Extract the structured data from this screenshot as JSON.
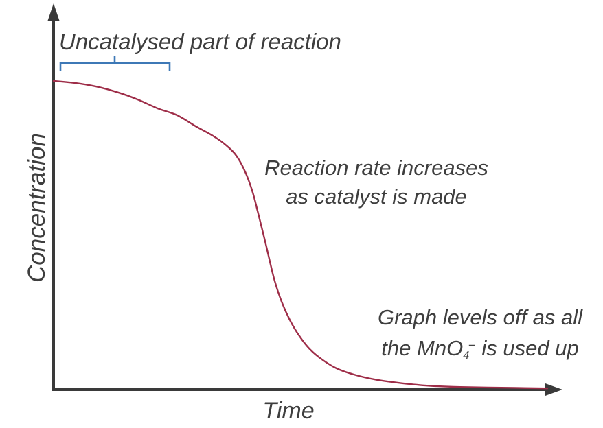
{
  "chart_data": {
    "type": "line",
    "title": "",
    "xlabel": "Time",
    "ylabel": "Concentration",
    "x_ticks": [],
    "y_ticks": [],
    "grid": "off",
    "legend": "none",
    "axis_range_note": "qualitative sketch, no numeric scales; values normalized 0-1",
    "axis_color": "#3a3a3a",
    "curve_color": "#9e2d48",
    "bracket_color": "#3d78b6",
    "text_color": "#3e3e3e",
    "background_color": "#ffffff",
    "series": [
      {
        "name": "reactant-concentration-vs-time",
        "x": [
          0.0,
          0.045,
          0.086,
          0.128,
          0.17,
          0.211,
          0.25,
          0.288,
          0.323,
          0.35,
          0.371,
          0.389,
          0.403,
          0.414,
          0.426,
          0.437,
          0.448,
          0.462,
          0.478,
          0.498,
          0.52,
          0.545,
          0.573,
          0.608,
          0.65,
          0.698,
          0.754,
          0.81,
          0.879,
          1.0
        ],
        "y": [
          1.0,
          0.993,
          0.982,
          0.964,
          0.94,
          0.911,
          0.889,
          0.853,
          0.822,
          0.791,
          0.756,
          0.702,
          0.64,
          0.573,
          0.496,
          0.422,
          0.351,
          0.284,
          0.227,
          0.173,
          0.129,
          0.096,
          0.069,
          0.049,
          0.033,
          0.022,
          0.013,
          0.009,
          0.007,
          0.004
        ]
      }
    ],
    "annotations": {
      "uncatalysed": {
        "text": "Uncatalysed part of reaction",
        "position": "top-left, above blue bracket spanning first ~22% of time axis"
      },
      "rate": {
        "line1": "Reaction rate increases",
        "line2": "as catalyst is made",
        "position": "right of steep middle section of curve"
      },
      "levels": {
        "line1": "Graph levels off as all",
        "line2_pre": "the MnO",
        "line2_sub": "4",
        "line2_sup": "−",
        "line2_post": " is used up",
        "position": "bottom-right above flat tail of curve"
      }
    }
  }
}
